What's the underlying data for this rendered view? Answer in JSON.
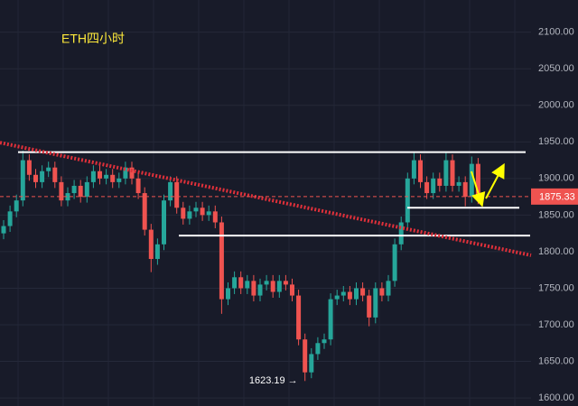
{
  "chart_data": {
    "type": "candlestick",
    "title": "ETH四小时",
    "ylim": [
      1589,
      2144
    ],
    "yticks": [
      {
        "value": 1600,
        "label": "1600.00"
      },
      {
        "value": 1650,
        "label": "1650.00"
      },
      {
        "value": 1700,
        "label": "1700.00"
      },
      {
        "value": 1750,
        "label": "1750.00"
      },
      {
        "value": 1800,
        "label": "1800.00"
      },
      {
        "value": 1850,
        "label": "1850.00"
      },
      {
        "value": 1900,
        "label": "1900.00"
      },
      {
        "value": 1950,
        "label": "1950.00"
      },
      {
        "value": 2000,
        "label": "2000.00"
      },
      {
        "value": 2050,
        "label": "2050.00"
      },
      {
        "value": 2100,
        "label": "2100.00"
      }
    ],
    "grid": true,
    "up_color": "#26a69a",
    "down_color": "#ef5350",
    "open": [
      1825,
      1835,
      1855,
      1870,
      1925,
      1905,
      1895,
      1910,
      1915,
      1895,
      1870,
      1880,
      1890,
      1875,
      1895,
      1910,
      1900,
      1905,
      1895,
      1900,
      1915,
      1900,
      1880,
      1830,
      1790,
      1810,
      1870,
      1895,
      1860,
      1845,
      1855,
      1860,
      1850,
      1855,
      1840,
      1735,
      1750,
      1765,
      1750,
      1760,
      1740,
      1755,
      1760,
      1745,
      1760,
      1755,
      1740,
      1680,
      1635,
      1660,
      1675,
      1680,
      1735,
      1740,
      1745,
      1735,
      1750,
      1740,
      1710,
      1750,
      1740,
      1760,
      1810,
      1840,
      1900,
      1925,
      1895,
      1880,
      1900,
      1890,
      1925,
      1890,
      1895,
      1875,
      1920
    ],
    "high": [
      1843,
      1863,
      1878,
      1938,
      1933,
      1913,
      1918,
      1923,
      1923,
      1903,
      1888,
      1898,
      1898,
      1903,
      1918,
      1918,
      1913,
      1913,
      1908,
      1923,
      1923,
      1908,
      1888,
      1838,
      1818,
      1878,
      1903,
      1903,
      1868,
      1863,
      1868,
      1868,
      1863,
      1863,
      1848,
      1758,
      1773,
      1773,
      1768,
      1768,
      1763,
      1768,
      1768,
      1768,
      1768,
      1763,
      1748,
      1688,
      1668,
      1683,
      1688,
      1743,
      1748,
      1753,
      1753,
      1758,
      1758,
      1748,
      1758,
      1758,
      1768,
      1818,
      1848,
      1908,
      1935,
      1933,
      1903,
      1908,
      1908,
      1935,
      1933,
      1903,
      1903,
      1930,
      1928
    ],
    "low": [
      1817,
      1827,
      1847,
      1862,
      1897,
      1887,
      1887,
      1902,
      1887,
      1862,
      1862,
      1872,
      1867,
      1867,
      1887,
      1892,
      1892,
      1887,
      1887,
      1892,
      1892,
      1872,
      1822,
      1772,
      1782,
      1802,
      1862,
      1852,
      1837,
      1837,
      1847,
      1842,
      1842,
      1832,
      1715,
      1727,
      1742,
      1742,
      1742,
      1732,
      1732,
      1747,
      1737,
      1737,
      1747,
      1732,
      1672,
      1623.19,
      1627,
      1652,
      1667,
      1672,
      1727,
      1732,
      1727,
      1727,
      1732,
      1698,
      1702,
      1732,
      1732,
      1752,
      1802,
      1832,
      1892,
      1887,
      1872,
      1872,
      1882,
      1882,
      1882,
      1882,
      1862,
      1867,
      1865
    ],
    "close": [
      1835,
      1855,
      1870,
      1925,
      1905,
      1895,
      1910,
      1915,
      1895,
      1870,
      1880,
      1890,
      1875,
      1895,
      1910,
      1900,
      1905,
      1895,
      1900,
      1915,
      1900,
      1880,
      1830,
      1790,
      1810,
      1870,
      1895,
      1860,
      1845,
      1855,
      1860,
      1850,
      1855,
      1840,
      1735,
      1750,
      1765,
      1750,
      1760,
      1740,
      1755,
      1760,
      1745,
      1760,
      1755,
      1740,
      1680,
      1635,
      1660,
      1675,
      1680,
      1735,
      1740,
      1745,
      1735,
      1750,
      1740,
      1710,
      1750,
      1740,
      1760,
      1810,
      1840,
      1900,
      1925,
      1895,
      1880,
      1900,
      1890,
      1925,
      1890,
      1895,
      1875,
      1920,
      1875.33
    ],
    "current_price": 1875.33,
    "levels": [
      1936,
      1860,
      1822
    ],
    "trendline": [
      1949,
      1795
    ],
    "annotation": {
      "text": "1623.19 →",
      "value": 1623.19
    }
  }
}
